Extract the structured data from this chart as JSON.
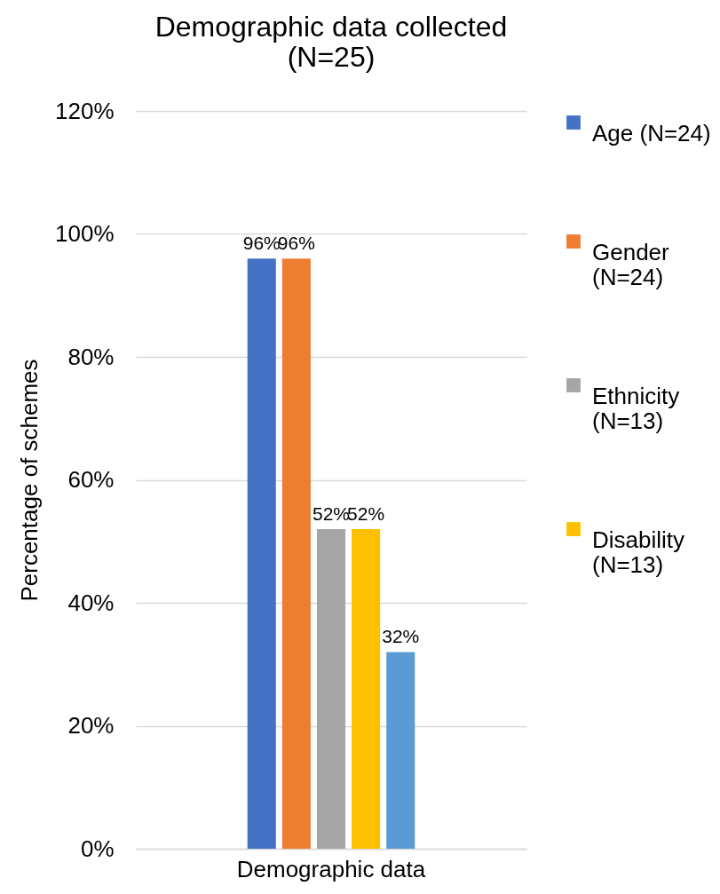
{
  "chart_data": {
    "type": "bar",
    "title": "Demographic data collected (N=25)",
    "ylabel": "Percentage of schemes",
    "categories": [
      "Demographic data"
    ],
    "series": [
      {
        "name": "Age (N=24)",
        "color": "#4472c4",
        "values": [
          96
        ],
        "value_labels": [
          "96%"
        ]
      },
      {
        "name": "Gender (N=24)",
        "color": "#ed7d31",
        "values": [
          96
        ],
        "value_labels": [
          "96%"
        ]
      },
      {
        "name": "Ethnicity (N=13)",
        "color": "#a5a5a5",
        "values": [
          52
        ],
        "value_labels": [
          "52%"
        ]
      },
      {
        "name": "Disability (N=13)",
        "color": "#ffc000",
        "values": [
          52
        ],
        "value_labels": [
          "52%"
        ]
      },
      {
        "color": "#5b9bd5",
        "values": [
          32
        ],
        "value_labels": [
          "32%"
        ]
      }
    ],
    "ylim": [
      0,
      120
    ],
    "yticks": [
      {
        "value": 0,
        "label": "0%"
      },
      {
        "value": 20,
        "label": "20%"
      },
      {
        "value": 40,
        "label": "40%"
      },
      {
        "value": 60,
        "label": "60%"
      },
      {
        "value": 80,
        "label": "80%"
      },
      {
        "value": 100,
        "label": "100%"
      },
      {
        "value": 120,
        "label": "120%"
      }
    ],
    "grid": "y",
    "legend": "right"
  }
}
